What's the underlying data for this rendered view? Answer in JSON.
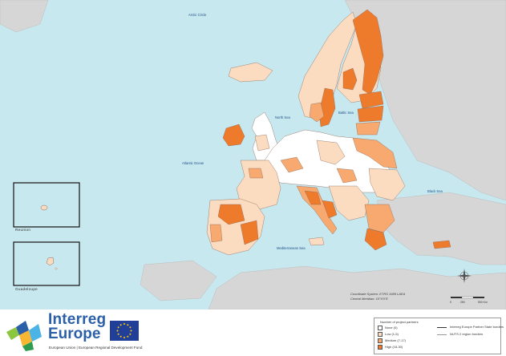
{
  "colors": {
    "sea": "#c8e8ef",
    "non_member_land": "#d6d6d6",
    "none": "#ffffff",
    "low": "#fcdcc0",
    "medium": "#f7a970",
    "high": "#ee7a2c",
    "border": "#8a6a5a"
  },
  "map": {
    "sea_labels": {
      "arctic": "Arctic Circle",
      "north_sea": "North Sea",
      "baltic": "Baltic Sea",
      "atlantic": "Atlantic Ocean",
      "black_sea": "Black Sea",
      "mediterranean": "Mediterranean Sea"
    },
    "insets": {
      "reunion": "Reunion",
      "guadeloupe": "Guadeloupe"
    },
    "coordinate_system": "Coordinate System: ETRS 1989 LAEA",
    "central_meridian": "Central Meridian: 10°0'0\"E",
    "scale": {
      "zero": "0",
      "mid": "250",
      "end": "500 Km"
    },
    "compass_icon": "compass-rose-icon"
  },
  "footer": {
    "brand_line1": "Interreg",
    "brand_line2": "Europe",
    "subtitle": "European Union | European Regional Development Fund",
    "eu_flag_icon": "eu-flag-icon",
    "logo_icon": "interreg-logo-icon"
  },
  "legend": {
    "title": "Number of project partners",
    "items": [
      {
        "label": "None (0)",
        "color": "#ffffff"
      },
      {
        "label": "Low (1-5)",
        "color": "#fcdcc0"
      },
      {
        "label": "Medium (7-17)",
        "color": "#f7a970"
      },
      {
        "label": "High (18-30)",
        "color": "#ee7a2c"
      }
    ],
    "lines": [
      {
        "label": "Interreg Europe Partner State borders"
      },
      {
        "label": "NUTS 2 region borders"
      }
    ]
  }
}
